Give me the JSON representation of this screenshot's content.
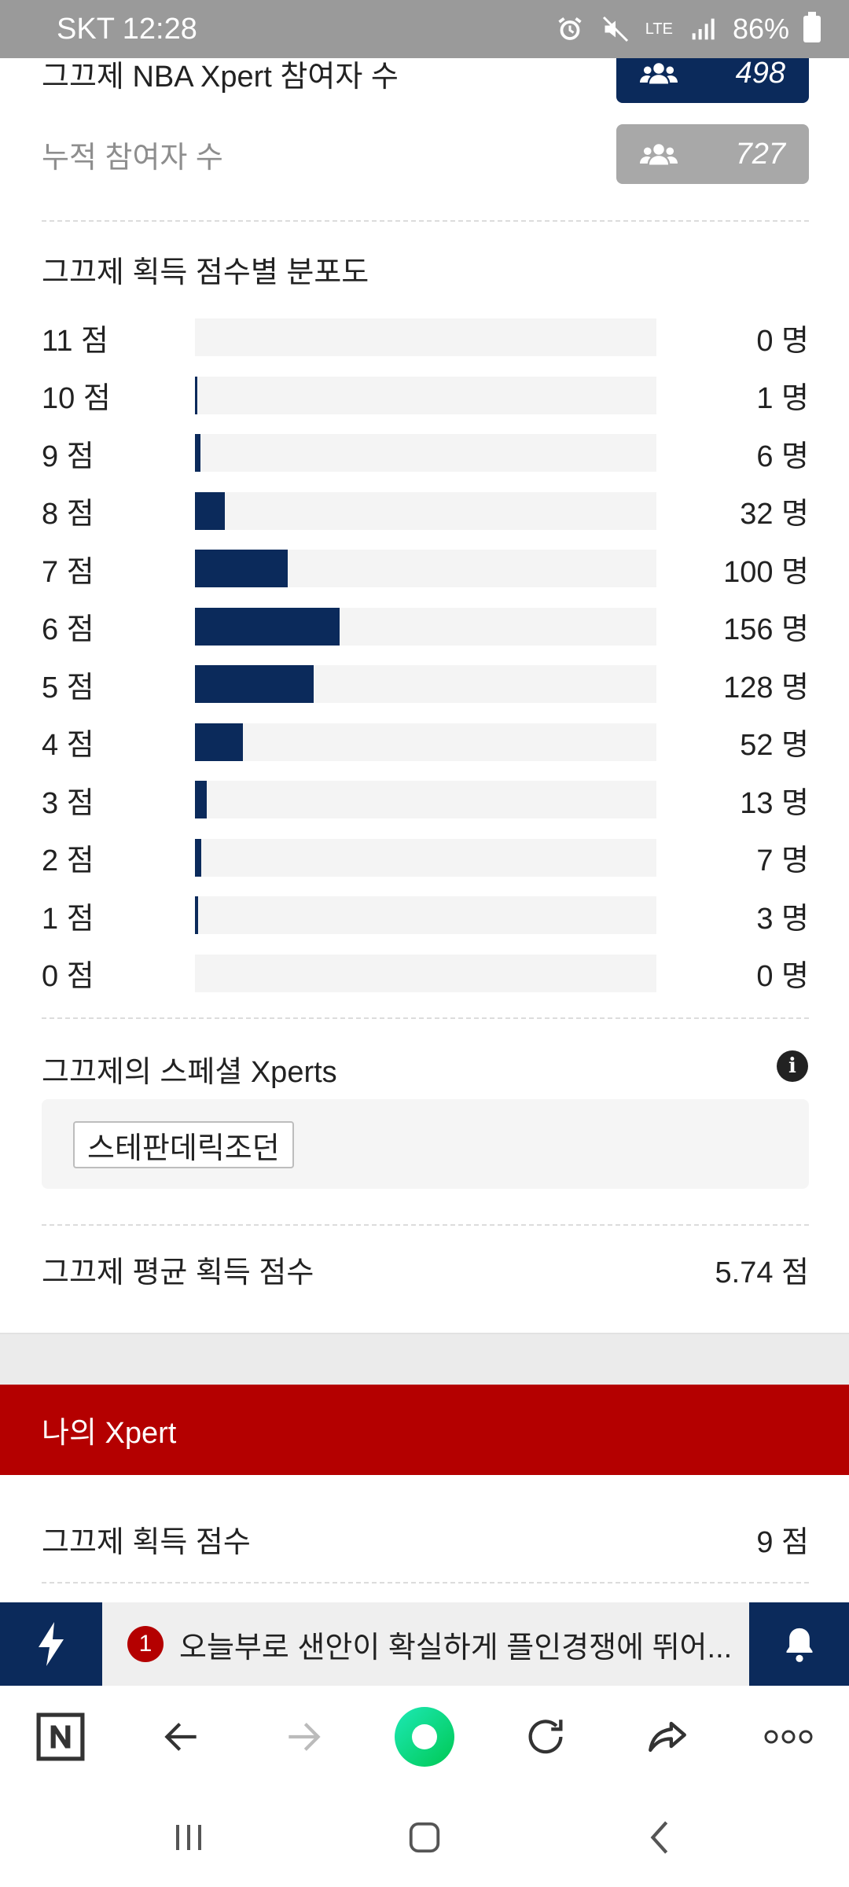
{
  "status_bar": {
    "carrier_time": "SKT 12:28",
    "battery": "86%",
    "network": "LTE"
  },
  "participants": {
    "nba_label": "그끄제 NBA Xpert 참여자 수",
    "nba_count": "498",
    "cumulative_label": "누적 참여자 수",
    "cumulative_count": "727"
  },
  "distribution": {
    "title": "그끄제 획득 점수별 분포도",
    "rows": [
      {
        "score": "11 점",
        "count": "0 명",
        "value": 0
      },
      {
        "score": "10 점",
        "count": "1 명",
        "value": 1
      },
      {
        "score": "9 점",
        "count": "6 명",
        "value": 6
      },
      {
        "score": "8 점",
        "count": "32 명",
        "value": 32
      },
      {
        "score": "7 점",
        "count": "100 명",
        "value": 100
      },
      {
        "score": "6 점",
        "count": "156 명",
        "value": 156
      },
      {
        "score": "5 점",
        "count": "128 명",
        "value": 128
      },
      {
        "score": "4 점",
        "count": "52 명",
        "value": 52
      },
      {
        "score": "3 점",
        "count": "13 명",
        "value": 13
      },
      {
        "score": "2 점",
        "count": "7 명",
        "value": 7
      },
      {
        "score": "1 점",
        "count": "3 명",
        "value": 3
      },
      {
        "score": "0 점",
        "count": "0 명",
        "value": 0
      }
    ],
    "max_value": 498
  },
  "special": {
    "title": "그끄제의 스페셜 Xperts",
    "chip": "스테판데릭조던"
  },
  "average": {
    "label": "그끄제 평균 획득 점수",
    "value": "5.74 점"
  },
  "my_xpert": {
    "header": "나의 Xpert",
    "score_label": "그끄제 획득 점수",
    "score_value": "9 점"
  },
  "news": {
    "index": "1",
    "headline": "오늘부로 샌안이 확실하게 플인경쟁에 뛰어..."
  },
  "colors": {
    "navy": "#0b2a5b",
    "red": "#b40000",
    "track": "#f4f4f4"
  }
}
